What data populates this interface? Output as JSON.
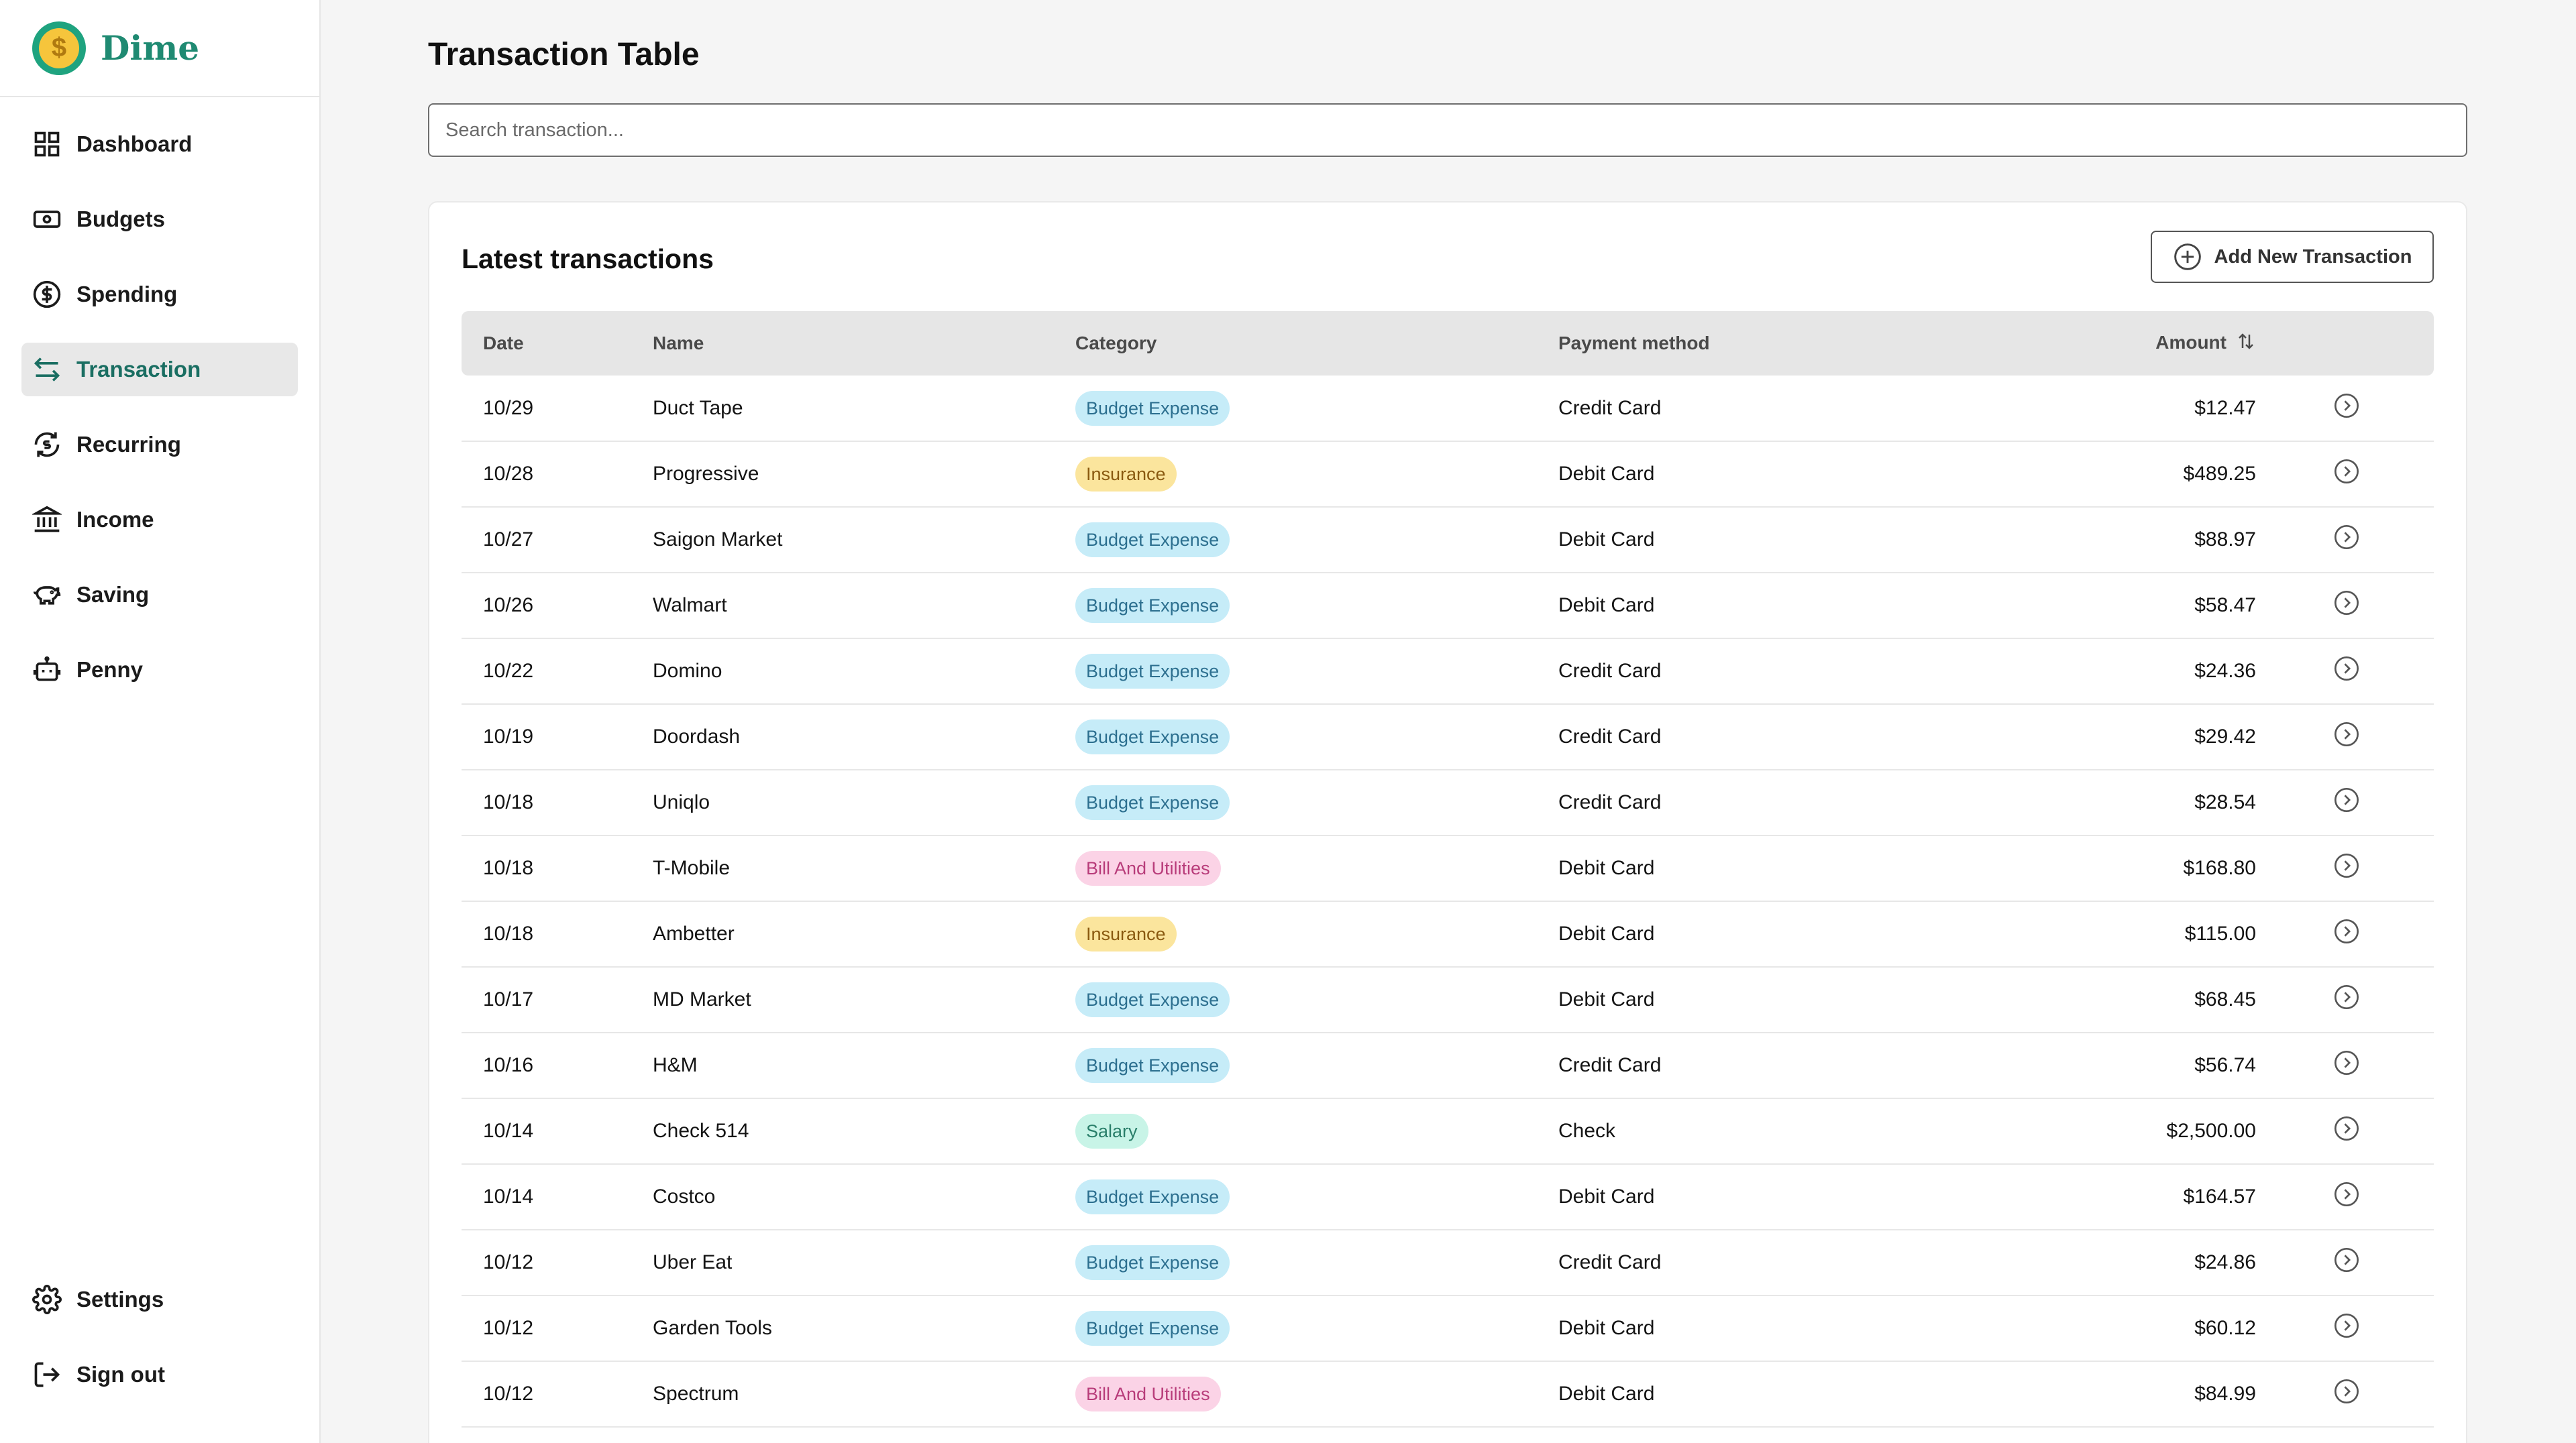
{
  "brand": {
    "name": "Dime",
    "coin_symbol": "$"
  },
  "nav": {
    "items": [
      {
        "label": "Dashboard",
        "icon": "dashboard-icon"
      },
      {
        "label": "Budgets",
        "icon": "budgets-icon"
      },
      {
        "label": "Spending",
        "icon": "spending-icon"
      },
      {
        "label": "Transaction",
        "icon": "transaction-icon",
        "active": true
      },
      {
        "label": "Recurring",
        "icon": "recurring-icon"
      },
      {
        "label": "Income",
        "icon": "income-icon"
      },
      {
        "label": "Saving",
        "icon": "saving-icon"
      },
      {
        "label": "Penny",
        "icon": "penny-icon"
      }
    ],
    "bottom": [
      {
        "label": "Settings",
        "icon": "gear-icon"
      },
      {
        "label": "Sign out",
        "icon": "sign-out-icon"
      }
    ]
  },
  "page": {
    "title": "Transaction Table"
  },
  "search": {
    "placeholder": "Search transaction..."
  },
  "card": {
    "title": "Latest transactions",
    "add_button": "Add New Transaction"
  },
  "table": {
    "headers": {
      "date": "Date",
      "name": "Name",
      "category": "Category",
      "payment": "Payment method",
      "amount": "Amount"
    },
    "rows": [
      {
        "date": "10/29",
        "name": "Duct Tape",
        "category": "Budget Expense",
        "payment": "Credit Card",
        "amount": "$12.47"
      },
      {
        "date": "10/28",
        "name": "Progressive",
        "category": "Insurance",
        "payment": "Debit Card",
        "amount": "$489.25"
      },
      {
        "date": "10/27",
        "name": "Saigon Market",
        "category": "Budget Expense",
        "payment": "Debit Card",
        "amount": "$88.97"
      },
      {
        "date": "10/26",
        "name": "Walmart",
        "category": "Budget Expense",
        "payment": "Debit Card",
        "amount": "$58.47"
      },
      {
        "date": "10/22",
        "name": "Domino",
        "category": "Budget Expense",
        "payment": "Credit Card",
        "amount": "$24.36"
      },
      {
        "date": "10/19",
        "name": "Doordash",
        "category": "Budget Expense",
        "payment": "Credit Card",
        "amount": "$29.42"
      },
      {
        "date": "10/18",
        "name": "Uniqlo",
        "category": "Budget Expense",
        "payment": "Credit Card",
        "amount": "$28.54"
      },
      {
        "date": "10/18",
        "name": "T-Mobile",
        "category": "Bill And Utilities",
        "payment": "Debit Card",
        "amount": "$168.80"
      },
      {
        "date": "10/18",
        "name": "Ambetter",
        "category": "Insurance",
        "payment": "Debit Card",
        "amount": "$115.00"
      },
      {
        "date": "10/17",
        "name": "MD Market",
        "category": "Budget Expense",
        "payment": "Debit Card",
        "amount": "$68.45"
      },
      {
        "date": "10/16",
        "name": "H&M",
        "category": "Budget Expense",
        "payment": "Credit Card",
        "amount": "$56.74"
      },
      {
        "date": "10/14",
        "name": "Check 514",
        "category": "Salary",
        "payment": "Check",
        "amount": "$2,500.00"
      },
      {
        "date": "10/14",
        "name": "Costco",
        "category": "Budget Expense",
        "payment": "Debit Card",
        "amount": "$164.57"
      },
      {
        "date": "10/12",
        "name": "Uber Eat",
        "category": "Budget Expense",
        "payment": "Credit Card",
        "amount": "$24.86"
      },
      {
        "date": "10/12",
        "name": "Garden Tools",
        "category": "Budget Expense",
        "payment": "Debit Card",
        "amount": "$60.12"
      },
      {
        "date": "10/12",
        "name": "Spectrum",
        "category": "Bill And Utilities",
        "payment": "Debit Card",
        "amount": "$84.99"
      }
    ]
  },
  "colors": {
    "brand": "#1f8a72",
    "active_nav_text": "#1a6e62",
    "budget_expense_bg": "#c6ecf8",
    "insurance_bg": "#fbe59d",
    "bill_bg": "#fbd3e6",
    "salary_bg": "#c8f4e7"
  }
}
